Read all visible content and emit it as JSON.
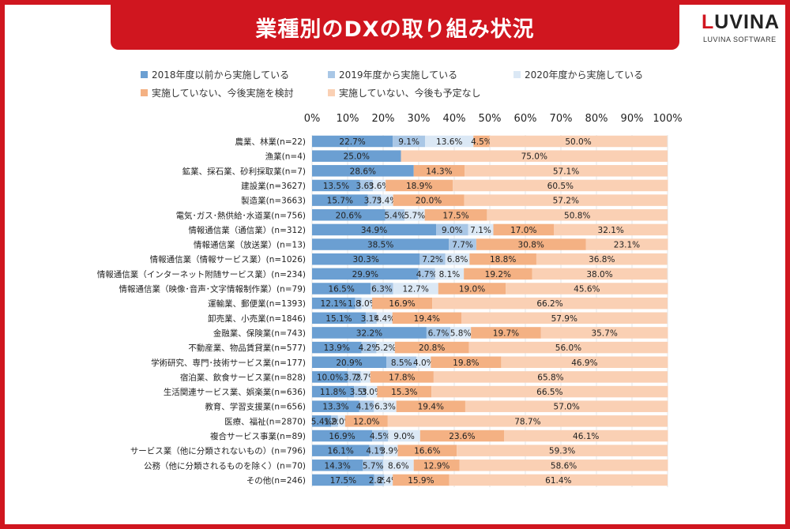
{
  "header": {
    "title": "業種別のDXの取り組み状況"
  },
  "logo": {
    "word_first": "L",
    "word_rest": "UVINA",
    "subtitle": "LUVINA SOFTWARE"
  },
  "colors": {
    "brand": "#d0161f"
  },
  "chart_data": {
    "type": "bar",
    "orientation": "horizontal",
    "stacked": true,
    "xlim": [
      0,
      100
    ],
    "ticks": [
      "0%",
      "10%",
      "20%",
      "30%",
      "40%",
      "50%",
      "60%",
      "70%",
      "80%",
      "90%",
      "100%"
    ],
    "legend_position": "top",
    "grid": true,
    "categories": [
      "農業、林業(n=22)",
      "漁業(n=4)",
      "鉱業、採石業、砂利採取業(n=7)",
      "建設業(n=3627)",
      "製造業(n=3663)",
      "電気･ガス･熱供給･水道業(n=756)",
      "情報通信業（通信業）(n=312)",
      "情報通信業（放送業）(n=13)",
      "情報通信業（情報サービス業）(n=1026)",
      "情報通信業（インターネット附随サービス業）(n=234)",
      "情報通信業（映像･音声･文字情報制作業）(n=79)",
      "運輸業、郵便業(n=1393)",
      "卸売業、小売業(n=1846)",
      "金融業、保険業(n=743)",
      "不動産業、物品賃貸業(n=577)",
      "学術研究、専門･技術サービス業(n=177)",
      "宿泊業、飲食サービス業(n=828)",
      "生活関連サービス業、娯楽業(n=636)",
      "教育、学習支援業(n=656)",
      "医療、福祉(n=2870)",
      "複合サービス事業(n=89)",
      "サービス業（他に分類されないもの）(n=796)",
      "公務（他に分類されるものを除く）(n=70)",
      "その他(n=246)"
    ],
    "series": [
      {
        "name": "2018年度以前から実施している",
        "color": "#6b9fd2",
        "values": [
          22.7,
          25.0,
          28.6,
          13.5,
          15.7,
          20.6,
          34.9,
          38.5,
          30.3,
          29.9,
          16.5,
          12.1,
          15.1,
          32.2,
          13.9,
          20.9,
          10.0,
          11.8,
          13.3,
          5.4,
          16.9,
          16.1,
          14.3,
          17.5
        ],
        "labels": [
          "22.7%",
          "25.0%",
          "28.6%",
          "13.5%",
          "15.7%",
          "20.6%",
          "34.9%",
          "38.5%",
          "30.3%",
          "29.9%",
          "16.5%",
          "12.1%",
          "15.1%",
          "32.2%",
          "13.9%",
          "20.9%",
          "10.0%",
          "11.8%",
          "13.3%",
          "5.4%",
          "16.9%",
          "16.1%",
          "14.3%",
          "17.5%"
        ]
      },
      {
        "name": "2019年度から実施している",
        "color": "#a9c7e6",
        "values": [
          9.1,
          0,
          0,
          3.6,
          3.7,
          5.4,
          9.0,
          7.7,
          7.2,
          4.7,
          6.3,
          1.8,
          3.1,
          6.7,
          4.2,
          8.5,
          3.7,
          3.5,
          4.1,
          1.9,
          4.5,
          4.1,
          5.7,
          2.8
        ],
        "labels": [
          "9.1%",
          "",
          "",
          "3.6%",
          "3.7%",
          "5.4%",
          "9.0%",
          "7.7%",
          "7.2%",
          "4.7%",
          "6.3%",
          "1.8%",
          "3.1%",
          "6.7%",
          "4.2%",
          "8.5%",
          "3.7%",
          "3.5%",
          "4.1%",
          "1.9%",
          "4.5%",
          "4.1%",
          "5.7%",
          "2.8%"
        ]
      },
      {
        "name": "2020年度から実施している",
        "color": "#dbe8f5",
        "values": [
          13.6,
          0,
          0,
          3.6,
          3.4,
          5.7,
          7.1,
          0,
          6.8,
          8.1,
          12.7,
          3.0,
          4.4,
          5.8,
          5.2,
          4.0,
          2.7,
          3.0,
          6.3,
          2.0,
          9.0,
          3.9,
          8.6,
          2.4
        ],
        "labels": [
          "13.6%",
          "",
          "",
          "3.6%",
          "3.4%",
          "5.7%",
          "7.1%",
          "",
          "6.8%",
          "8.1%",
          "12.7%",
          "3.0%",
          "4.4%",
          "5.8%",
          "5.2%",
          "4.0%",
          "2.7%",
          "3.0%",
          "6.3%",
          "2.0%",
          "9.0%",
          "3.9%",
          "8.6%",
          "2.4%"
        ]
      },
      {
        "name": "実施していない、今後実施を検討",
        "color": "#f4b183",
        "values": [
          4.5,
          0,
          14.3,
          18.9,
          20.0,
          17.5,
          17.0,
          30.8,
          18.8,
          19.2,
          19.0,
          16.9,
          19.4,
          19.7,
          20.8,
          19.8,
          17.8,
          15.3,
          19.4,
          12.0,
          23.6,
          16.6,
          12.9,
          15.9
        ],
        "labels": [
          "4.5%",
          "",
          "14.3%",
          "18.9%",
          "20.0%",
          "17.5%",
          "17.0%",
          "30.8%",
          "18.8%",
          "19.2%",
          "19.0%",
          "16.9%",
          "19.4%",
          "19.7%",
          "20.8%",
          "19.8%",
          "17.8%",
          "15.3%",
          "19.4%",
          "12.0%",
          "23.6%",
          "16.6%",
          "12.9%",
          "15.9%"
        ]
      },
      {
        "name": "実施していない、今後も予定なし",
        "color": "#fad0b4",
        "values": [
          50.0,
          75.0,
          57.1,
          60.5,
          57.2,
          50.8,
          32.1,
          23.1,
          36.8,
          38.0,
          45.6,
          66.2,
          57.9,
          35.7,
          56.0,
          46.9,
          65.8,
          66.5,
          57.0,
          78.7,
          46.1,
          59.3,
          58.6,
          61.4
        ],
        "labels": [
          "50.0%",
          "75.0%",
          "57.1%",
          "60.5%",
          "57.2%",
          "50.8%",
          "32.1%",
          "23.1%",
          "36.8%",
          "38.0%",
          "45.6%",
          "66.2%",
          "57.9%",
          "35.7%",
          "56.0%",
          "46.9%",
          "65.8%",
          "66.5%",
          "57.0%",
          "78.7%",
          "46.1%",
          "59.3%",
          "58.6%",
          "61.4%"
        ]
      }
    ]
  }
}
